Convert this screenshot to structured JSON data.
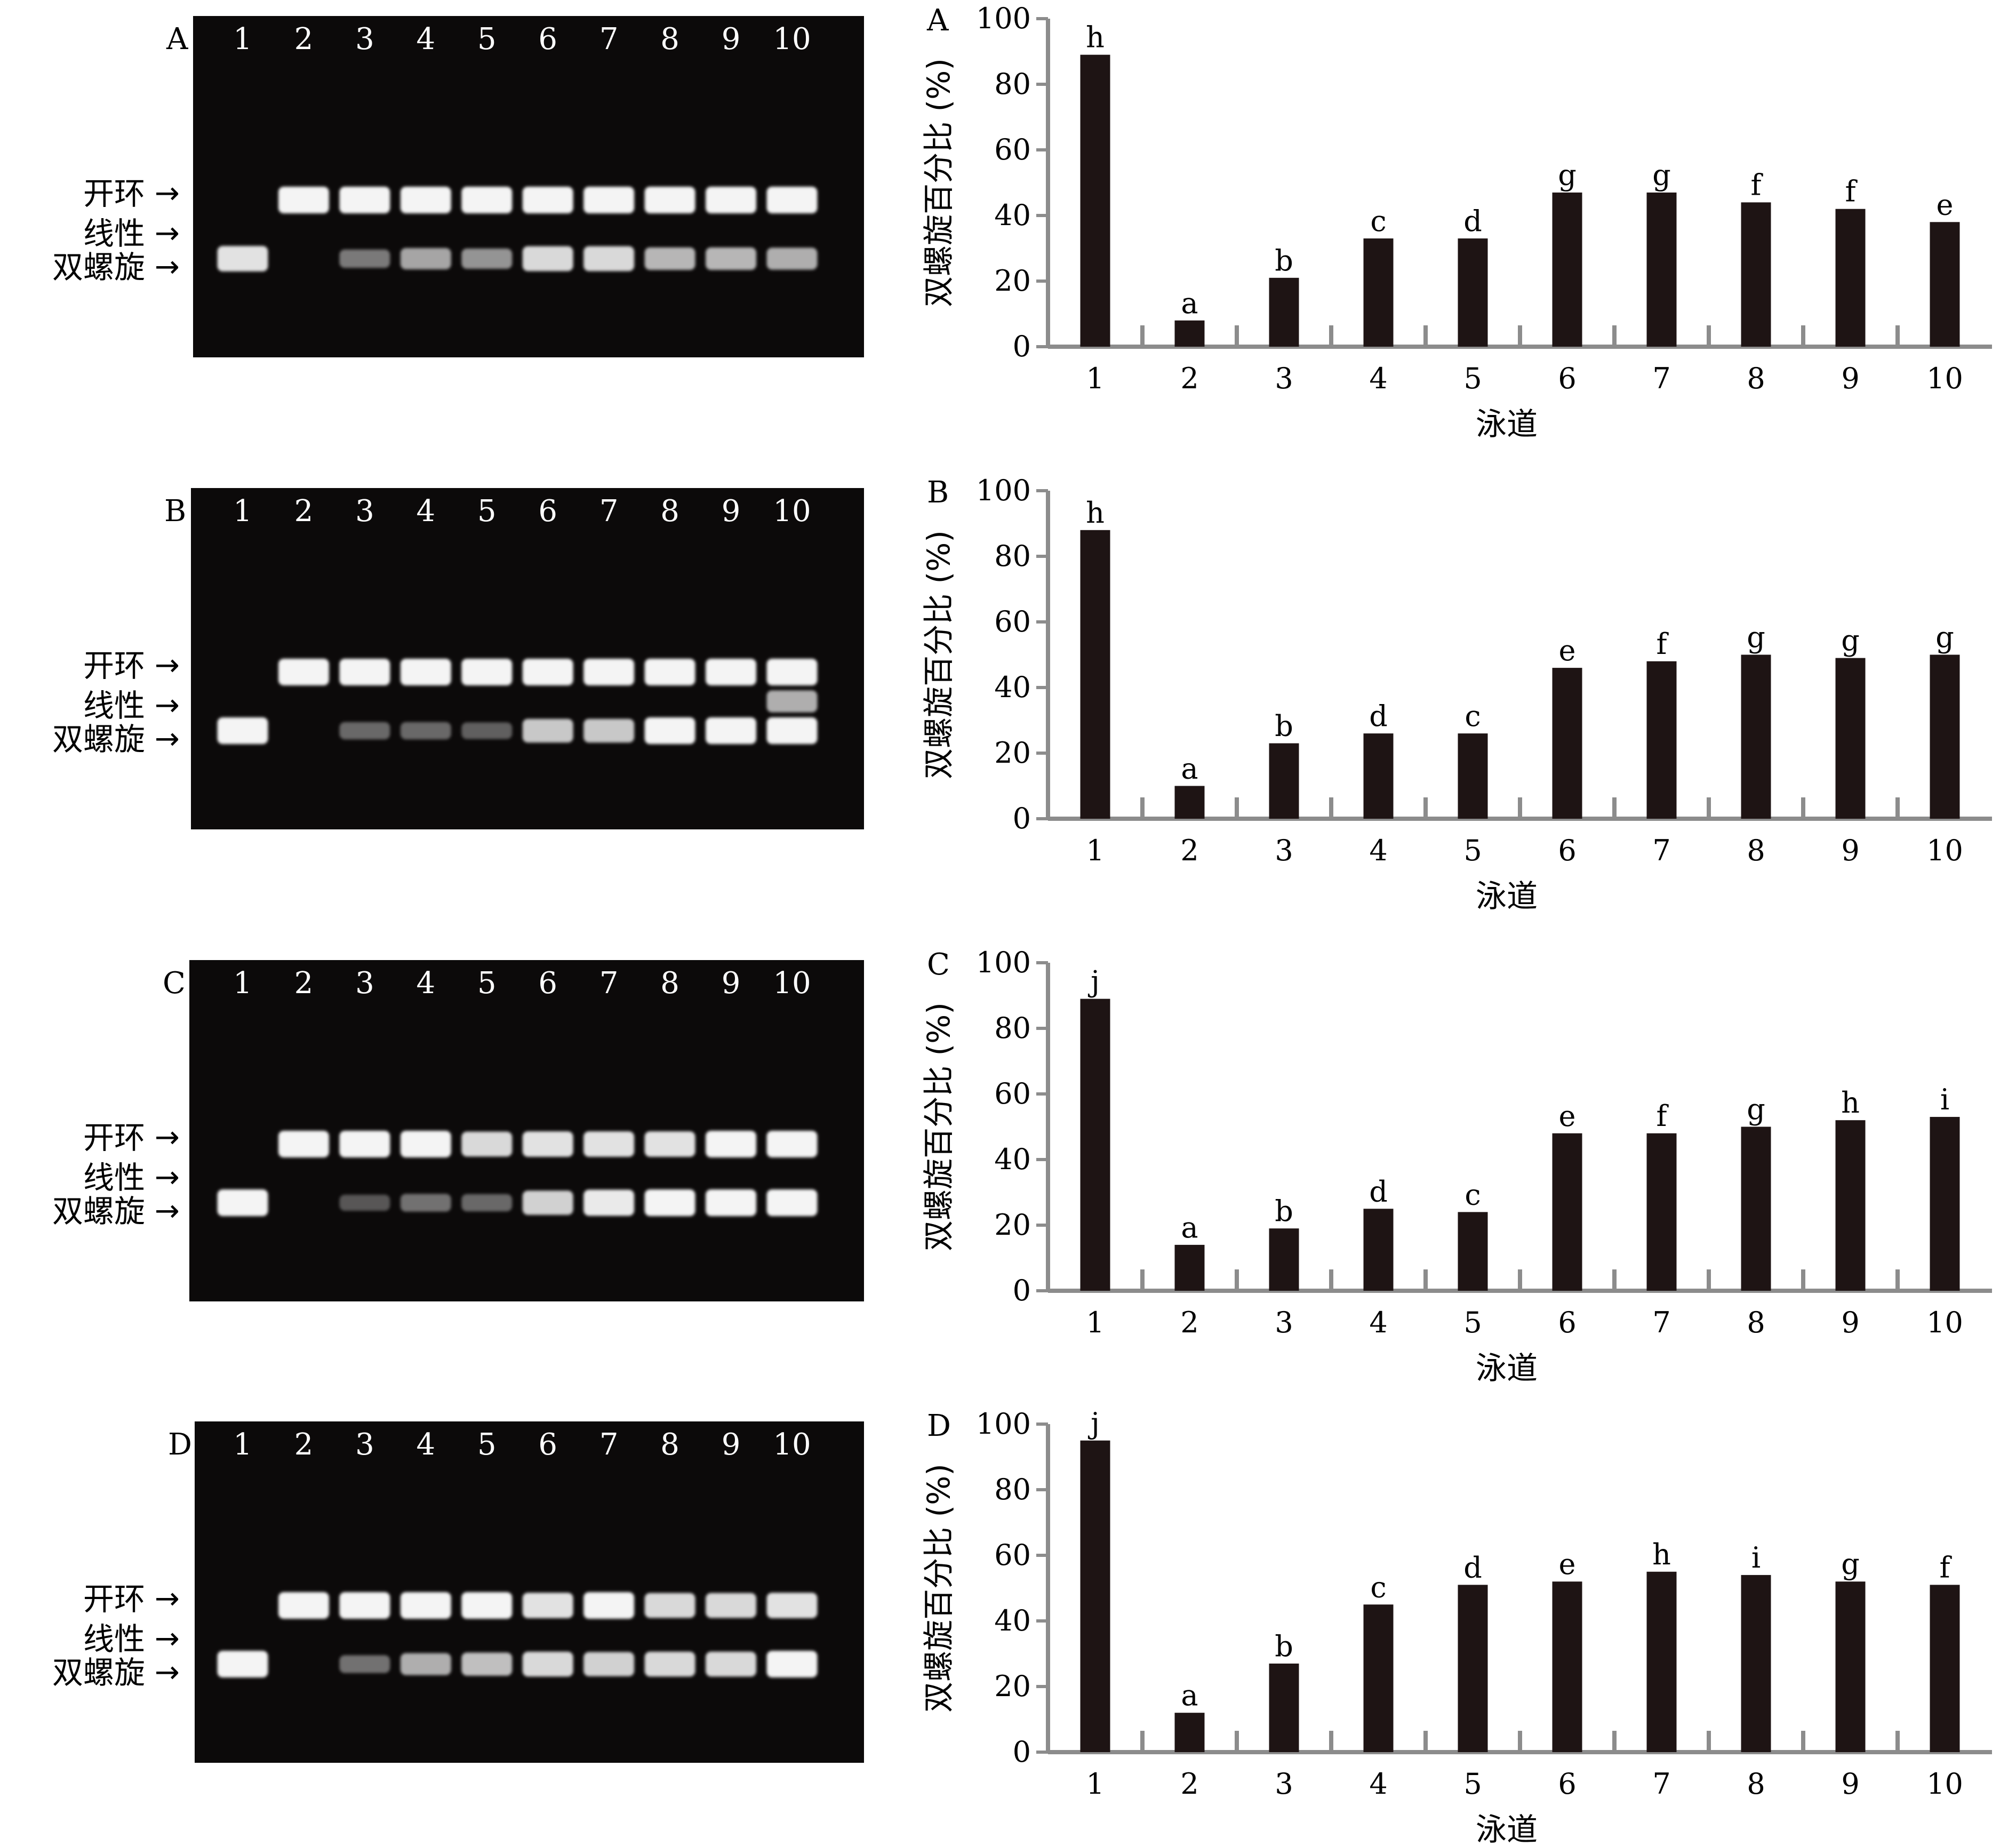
{
  "arrow_labels": [
    "开环",
    "线性",
    "双螺旋"
  ],
  "lane_labels": [
    "1",
    "2",
    "3",
    "4",
    "5",
    "6",
    "7",
    "8",
    "9",
    "10"
  ],
  "colors": {
    "bar": "#1e1414",
    "gel": "#0c0a0a",
    "band": "#f4f4f4",
    "axis": "#8c8c8c"
  },
  "chart_data": [
    {
      "type": "bar",
      "panel": "A",
      "categories": [
        "1",
        "2",
        "3",
        "4",
        "5",
        "6",
        "7",
        "8",
        "9",
        "10"
      ],
      "values": [
        89,
        8,
        21,
        33,
        33,
        47,
        47,
        44,
        42,
        38
      ],
      "sig_letters": [
        "h",
        "a",
        "b",
        "c",
        "d",
        "g",
        "g",
        "f",
        "f",
        "e"
      ],
      "xlabel": "泳道",
      "ylabel": "双螺旋百分比 (%)",
      "ylim": [
        0,
        100
      ],
      "yticks": [
        0,
        20,
        40,
        60,
        80,
        100
      ]
    },
    {
      "type": "bar",
      "panel": "B",
      "categories": [
        "1",
        "2",
        "3",
        "4",
        "5",
        "6",
        "7",
        "8",
        "9",
        "10"
      ],
      "values": [
        88,
        10,
        23,
        26,
        26,
        46,
        48,
        50,
        49,
        50
      ],
      "sig_letters": [
        "h",
        "a",
        "b",
        "d",
        "c",
        "e",
        "f",
        "g",
        "g",
        "g"
      ],
      "xlabel": "泳道",
      "ylabel": "双螺旋百分比 (%)",
      "ylim": [
        0,
        100
      ],
      "yticks": [
        0,
        20,
        40,
        60,
        80,
        100
      ]
    },
    {
      "type": "bar",
      "panel": "C",
      "categories": [
        "1",
        "2",
        "3",
        "4",
        "5",
        "6",
        "7",
        "8",
        "9",
        "10"
      ],
      "values": [
        89,
        14,
        19,
        25,
        24,
        48,
        48,
        50,
        52,
        53
      ],
      "sig_letters": [
        "j",
        "a",
        "b",
        "d",
        "c",
        "e",
        "f",
        "g",
        "h",
        "i"
      ],
      "xlabel": "泳道",
      "ylabel": "双螺旋百分比 (%)",
      "ylim": [
        0,
        100
      ],
      "yticks": [
        0,
        20,
        40,
        60,
        80,
        100
      ]
    },
    {
      "type": "bar",
      "panel": "D",
      "categories": [
        "1",
        "2",
        "3",
        "4",
        "5",
        "6",
        "7",
        "8",
        "9",
        "10"
      ],
      "values": [
        95,
        12,
        27,
        45,
        51,
        52,
        55,
        54,
        52,
        51
      ],
      "sig_letters": [
        "j",
        "a",
        "b",
        "c",
        "d",
        "e",
        "h",
        "i",
        "g",
        "f"
      ],
      "xlabel": "泳道",
      "ylabel": "双螺旋百分比 (%)",
      "ylim": [
        0,
        100
      ],
      "yticks": [
        0,
        20,
        40,
        60,
        80,
        100
      ]
    }
  ],
  "gels": [
    {
      "panel": "A",
      "open_circular": [
        0,
        1,
        1,
        1,
        1,
        1,
        1,
        1,
        1,
        1
      ],
      "linear": [
        0,
        0,
        0,
        0,
        0,
        0,
        0,
        0,
        0,
        0
      ],
      "supercoiled": [
        0.9,
        0,
        0.3,
        0.55,
        0.45,
        0.85,
        0.85,
        0.65,
        0.65,
        0.6
      ]
    },
    {
      "panel": "B",
      "open_circular": [
        0,
        1,
        1,
        1,
        1,
        1,
        1,
        1,
        1,
        1
      ],
      "linear": [
        0,
        0,
        0,
        0,
        0,
        0,
        0,
        0,
        0,
        0.6
      ],
      "supercoiled": [
        1,
        0,
        0.2,
        0.2,
        0.15,
        0.75,
        0.75,
        1,
        1,
        1
      ]
    },
    {
      "panel": "C",
      "open_circular": [
        0,
        1,
        1,
        1,
        0.85,
        0.9,
        0.9,
        0.9,
        1,
        1
      ],
      "linear": [
        0,
        0,
        0,
        0,
        0,
        0,
        0,
        0,
        0,
        0
      ],
      "supercoiled": [
        1,
        0,
        0.1,
        0.25,
        0.2,
        0.8,
        0.95,
        1,
        1,
        1
      ]
    },
    {
      "panel": "D",
      "open_circular": [
        0,
        1,
        1,
        1,
        1,
        0.9,
        1,
        0.85,
        0.85,
        0.9
      ],
      "linear": [
        0,
        0,
        0,
        0,
        0,
        0,
        0,
        0,
        0,
        0
      ],
      "supercoiled": [
        1,
        0,
        0.25,
        0.6,
        0.7,
        0.85,
        0.8,
        0.85,
        0.85,
        1
      ]
    }
  ]
}
